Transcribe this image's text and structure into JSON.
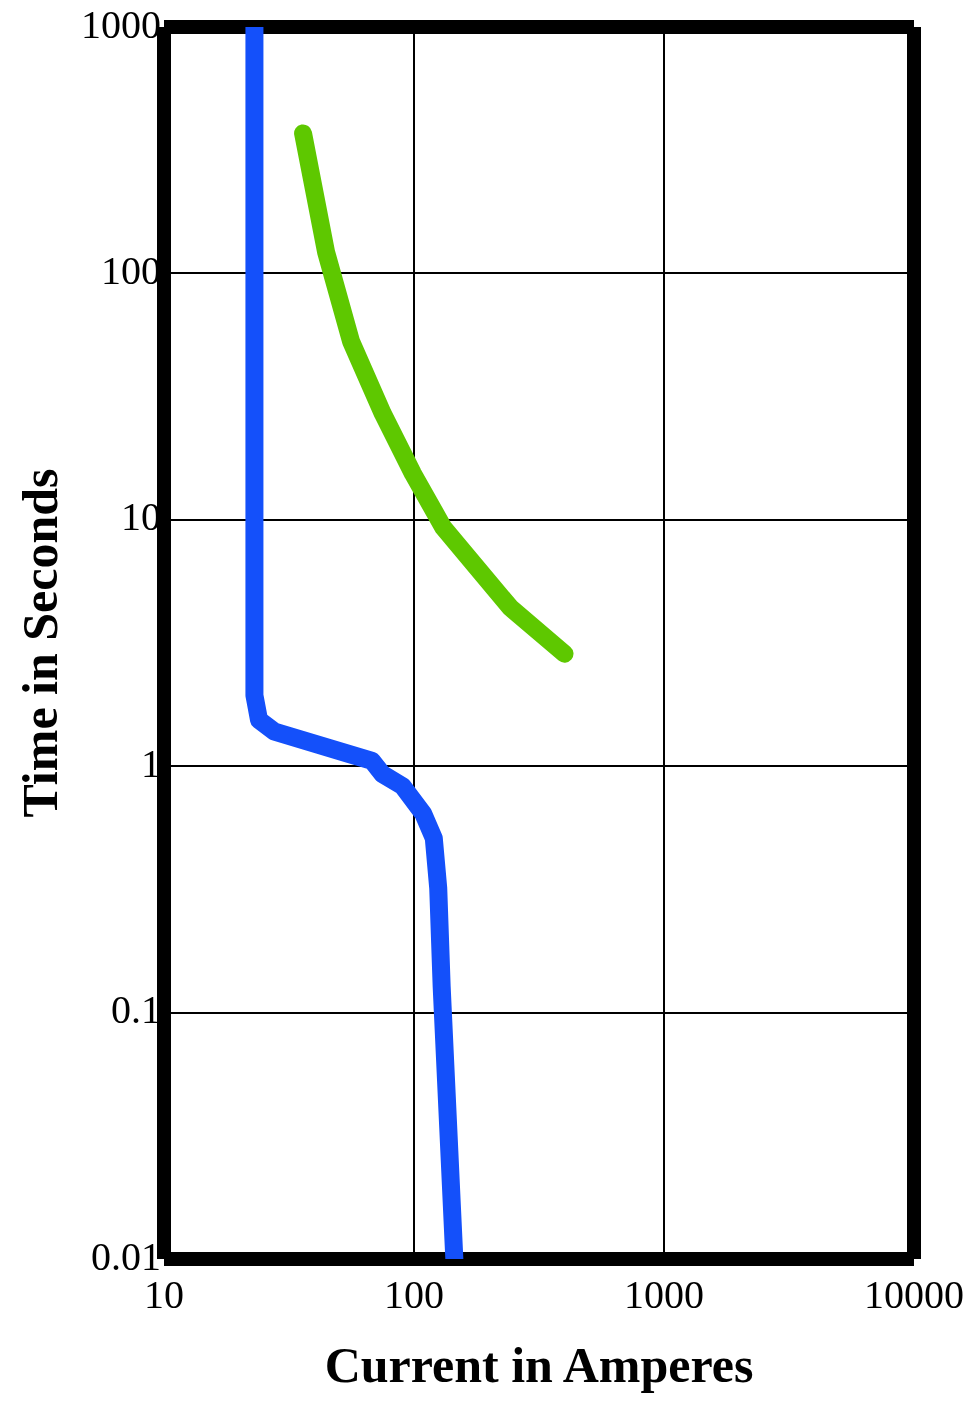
{
  "chart_data": {
    "type": "line",
    "xlabel": "Current in Amperes",
    "ylabel": "Time in Seconds",
    "log": "xy",
    "grid": true,
    "legend": false,
    "marker": "none",
    "line_style": "solid",
    "xlim": [
      10,
      10000
    ],
    "xticks": [
      10,
      100,
      1000,
      10000
    ],
    "ylim": [
      0.01,
      1000
    ],
    "yticks": [
      0.01,
      0.1,
      1,
      10,
      100,
      1000
    ],
    "series": [
      {
        "color": "#1450fa",
        "x": [
          23,
          23,
          24,
          27.7,
          68,
          74.7,
          90,
          109,
          120,
          125,
          129,
          145
        ],
        "values": [
          1000,
          1.94,
          1.54,
          1.38,
          1.05,
          0.93,
          0.83,
          0.64,
          0.51,
          0.32,
          0.128,
          0.01
        ]
      },
      {
        "color": "#5ec800",
        "x": [
          36,
          44.5,
          56,
          75,
          99,
          131,
          243,
          400
        ],
        "values": [
          370,
          122,
          53,
          27,
          15.4,
          9.3,
          4.4,
          2.86
        ]
      }
    ]
  }
}
